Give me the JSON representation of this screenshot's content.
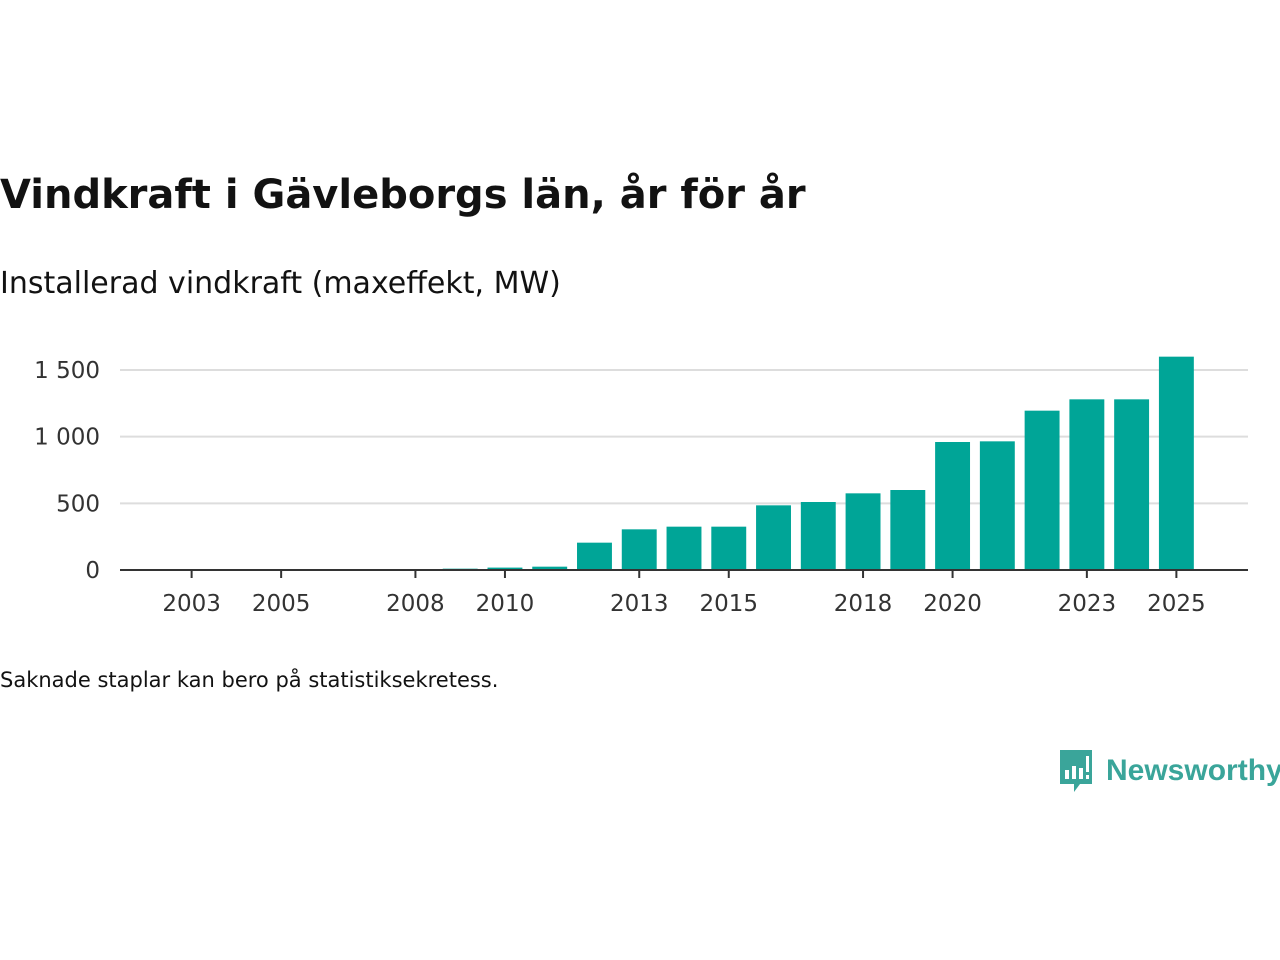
{
  "title": "Vindkraft i Gävleborgs län, år för år",
  "subtitle": "Installerad vindkraft (maxeffekt, MW)",
  "note": "Saknade staplar kan bero på statistiksekretess.",
  "brand": {
    "name": "Newsworthy"
  },
  "colors": {
    "bar": "#00a597",
    "grid": "#dddddd",
    "axis": "#333333",
    "brand": "#3aa59a"
  },
  "chart_data": {
    "type": "bar",
    "title": "Vindkraft i Gävleborgs län, år för år",
    "subtitle": "Installerad vindkraft (maxeffekt, MW)",
    "xlabel": "",
    "ylabel": "",
    "ylim": [
      0,
      1650
    ],
    "yticks": [
      0,
      500,
      1000,
      1500
    ],
    "ytick_labels": [
      "0",
      "500",
      "1 000",
      "1 500"
    ],
    "x_range": [
      2001.4,
      2026.6
    ],
    "xticks": [
      2003,
      2005,
      2008,
      2010,
      2013,
      2015,
      2018,
      2020,
      2023,
      2025
    ],
    "xtick_labels": [
      "2003",
      "2005",
      "2008",
      "2010",
      "2013",
      "2015",
      "2018",
      "2020",
      "2023",
      "2025"
    ],
    "categories": [
      2003,
      2004,
      2005,
      2006,
      2007,
      2008,
      2009,
      2010,
      2011,
      2012,
      2013,
      2014,
      2015,
      2016,
      2017,
      2018,
      2019,
      2020,
      2021,
      2022,
      2023,
      2024,
      2025
    ],
    "values": [
      1,
      1,
      1,
      1,
      1,
      3,
      10,
      18,
      25,
      205,
      305,
      325,
      325,
      485,
      510,
      575,
      600,
      960,
      965,
      1195,
      1280,
      1280,
      1600
    ],
    "grid": true
  }
}
